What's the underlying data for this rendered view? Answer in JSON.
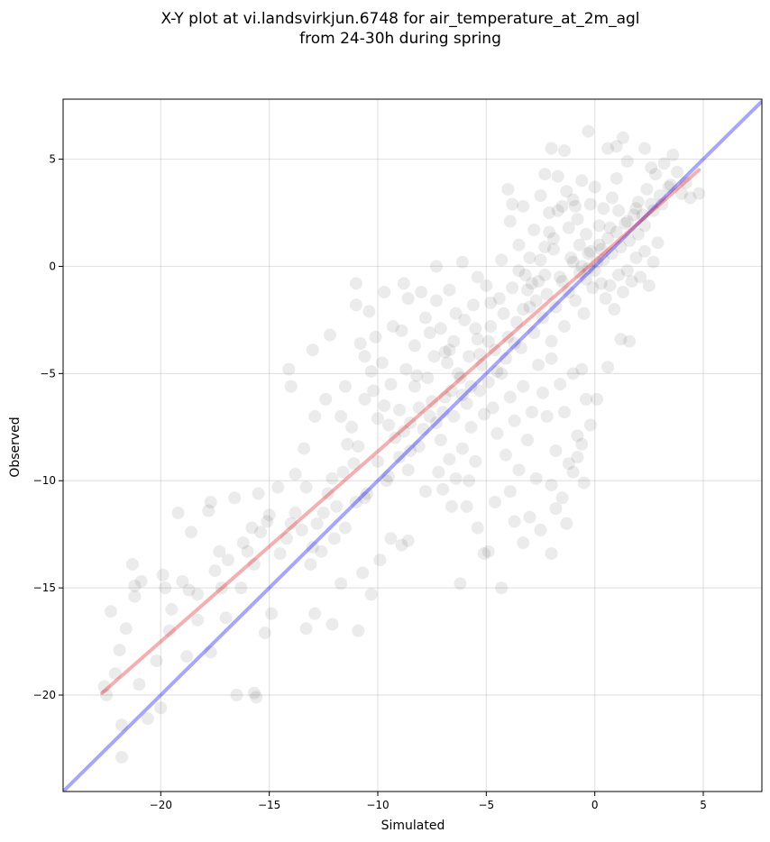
{
  "chart_data": {
    "type": "scatter",
    "title_lines": [
      "X-Y plot at vi.landsvirkjun.6748 for air_temperature_at_2m_agl",
      "from 24-30h during spring"
    ],
    "xlabel": "Simulated",
    "ylabel": "Observed",
    "xlim": [
      -24.5,
      7.7
    ],
    "ylim": [
      -24.5,
      7.8
    ],
    "x_ticks": [
      -20,
      -15,
      -10,
      -5,
      0,
      5
    ],
    "y_ticks": [
      -20,
      -15,
      -10,
      -5,
      0,
      5
    ],
    "x_tick_labels": [
      "−20",
      "−15",
      "−10",
      "−5",
      "0",
      "5"
    ],
    "y_tick_labels": [
      "−20",
      "−15",
      "−10",
      "−5",
      "0",
      "5"
    ],
    "grid": true,
    "point_color": "#000000",
    "point_alpha": 0.08,
    "identity_line": {
      "color": "#0000ff",
      "alpha": 0.35,
      "from": [
        -24.5,
        -24.5
      ],
      "to": [
        7.7,
        7.7
      ]
    },
    "regression_line": {
      "color": "#e41a1c",
      "alpha": 0.35,
      "from": [
        -22.7,
        -19.9
      ],
      "to": [
        4.8,
        4.5
      ]
    },
    "points": [
      [
        -22.3,
        -16.1
      ],
      [
        -21.9,
        -17.9
      ],
      [
        -22.6,
        -19.6
      ],
      [
        -21.8,
        -22.9
      ],
      [
        -21.8,
        -21.4
      ],
      [
        -21.2,
        -15.4
      ],
      [
        -20.9,
        -14.7
      ],
      [
        -21.0,
        -19.5
      ],
      [
        -20.6,
        -21.1
      ],
      [
        -21.3,
        -13.9
      ],
      [
        -21.2,
        -14.9
      ],
      [
        -20.0,
        -20.6
      ],
      [
        -19.9,
        -14.4
      ],
      [
        -19.8,
        -15.0
      ],
      [
        -19.5,
        -16.0
      ],
      [
        -19.2,
        -11.5
      ],
      [
        -19.0,
        -14.7
      ],
      [
        -18.7,
        -15.1
      ],
      [
        -18.6,
        -12.4
      ],
      [
        -18.3,
        -15.3
      ],
      [
        -17.8,
        -11.4
      ],
      [
        -17.7,
        -11.0
      ],
      [
        -17.5,
        -14.2
      ],
      [
        -17.3,
        -13.3
      ],
      [
        -17.2,
        -15.0
      ],
      [
        -16.9,
        -13.7
      ],
      [
        -16.6,
        -10.8
      ],
      [
        -16.2,
        -12.9
      ],
      [
        -16.0,
        -13.3
      ],
      [
        -15.8,
        -12.2
      ],
      [
        -15.5,
        -10.6
      ],
      [
        -15.4,
        -12.4
      ],
      [
        -15.1,
        -11.9
      ],
      [
        -16.5,
        -20.0
      ],
      [
        -15.7,
        -19.9
      ],
      [
        -15.6,
        -20.1
      ],
      [
        -15.2,
        -17.1
      ],
      [
        -14.9,
        -16.2
      ],
      [
        -14.5,
        -13.4
      ],
      [
        -14.2,
        -12.7
      ],
      [
        -14.0,
        -12.0
      ],
      [
        -13.8,
        -11.5
      ],
      [
        -13.5,
        -12.3
      ],
      [
        -13.3,
        -10.3
      ],
      [
        -13.0,
        -13.1
      ],
      [
        -12.8,
        -12.0
      ],
      [
        -12.5,
        -11.5
      ],
      [
        -12.3,
        -10.6
      ],
      [
        -12.1,
        -9.9
      ],
      [
        -11.9,
        -11.2
      ],
      [
        -11.6,
        -9.6
      ],
      [
        -11.4,
        -8.3
      ],
      [
        -11.1,
        -9.2
      ],
      [
        -10.9,
        -8.4
      ],
      [
        -10.6,
        -10.8
      ],
      [
        -14.1,
        -4.8
      ],
      [
        -14.0,
        -5.6
      ],
      [
        -13.0,
        -3.9
      ],
      [
        -12.2,
        -3.2
      ],
      [
        -11.5,
        -5.6
      ],
      [
        -11.0,
        -1.8
      ],
      [
        -10.8,
        -3.6
      ],
      [
        -10.6,
        -4.2
      ],
      [
        -10.3,
        -4.9
      ],
      [
        -10.1,
        -3.3
      ],
      [
        -9.8,
        -4.5
      ],
      [
        -13.3,
        -16.9
      ],
      [
        -12.9,
        -16.2
      ],
      [
        -12.1,
        -16.7
      ],
      [
        -11.7,
        -14.8
      ],
      [
        -10.9,
        -17.0
      ],
      [
        -10.7,
        -14.3
      ],
      [
        -10.3,
        -15.3
      ],
      [
        -9.9,
        -13.7
      ],
      [
        -9.4,
        -12.7
      ],
      [
        -8.9,
        -13.0
      ],
      [
        -8.6,
        -12.8
      ],
      [
        -10.0,
        -7.1
      ],
      [
        -9.7,
        -6.5
      ],
      [
        -9.5,
        -7.4
      ],
      [
        -9.2,
        -8.0
      ],
      [
        -9.0,
        -6.7
      ],
      [
        -8.8,
        -7.7
      ],
      [
        -8.5,
        -8.6
      ],
      [
        -8.3,
        -5.6
      ],
      [
        -8.1,
        -6.6
      ],
      [
        -7.9,
        -7.6
      ],
      [
        -7.7,
        -5.2
      ],
      [
        -7.5,
        -6.3
      ],
      [
        -9.3,
        -2.8
      ],
      [
        -8.9,
        -3.0
      ],
      [
        -8.6,
        -1.5
      ],
      [
        -8.3,
        -3.7
      ],
      [
        -8.0,
        -1.2
      ],
      [
        -7.8,
        -2.4
      ],
      [
        -7.6,
        -3.1
      ],
      [
        -7.3,
        -1.6
      ],
      [
        -7.1,
        -2.9
      ],
      [
        -6.9,
        -4.0
      ],
      [
        -6.7,
        -1.1
      ],
      [
        -6.4,
        -2.2
      ],
      [
        -7.3,
        -7.3
      ],
      [
        -7.1,
        -8.1
      ],
      [
        -6.9,
        -6.1
      ],
      [
        -6.7,
        -9.0
      ],
      [
        -6.5,
        -7.0
      ],
      [
        -6.3,
        -5.0
      ],
      [
        -6.1,
        -8.5
      ],
      [
        -5.9,
        -6.4
      ],
      [
        -5.7,
        -7.5
      ],
      [
        -5.5,
        -9.1
      ],
      [
        -5.3,
        -5.8
      ],
      [
        -5.1,
        -6.9
      ],
      [
        -7.0,
        -10.4
      ],
      [
        -6.6,
        -11.2
      ],
      [
        -6.2,
        -14.8
      ],
      [
        -5.8,
        -10.0
      ],
      [
        -5.4,
        -12.2
      ],
      [
        -5.1,
        -13.4
      ],
      [
        -4.9,
        -13.3
      ],
      [
        -4.6,
        -11.0
      ],
      [
        -4.3,
        -15.0
      ],
      [
        -3.7,
        -11.9
      ],
      [
        -3.3,
        -12.9
      ],
      [
        -6.8,
        -4.5
      ],
      [
        -6.5,
        -3.5
      ],
      [
        -6.2,
        -5.2
      ],
      [
        -6.0,
        -2.5
      ],
      [
        -5.8,
        -4.2
      ],
      [
        -5.6,
        -1.8
      ],
      [
        -5.4,
        -3.4
      ],
      [
        -5.2,
        -4.6
      ],
      [
        -5.0,
        -0.9
      ],
      [
        -4.8,
        -2.8
      ],
      [
        -4.6,
        -3.9
      ],
      [
        -4.4,
        -1.5
      ],
      [
        -4.9,
        -5.4
      ],
      [
        -4.7,
        -6.6
      ],
      [
        -4.5,
        -7.8
      ],
      [
        -4.3,
        -5.0
      ],
      [
        -4.1,
        -8.8
      ],
      [
        -3.9,
        -6.1
      ],
      [
        -3.7,
        -7.2
      ],
      [
        -3.5,
        -9.5
      ],
      [
        -3.3,
        -5.6
      ],
      [
        -3.1,
        -8.1
      ],
      [
        -2.9,
        -6.8
      ],
      [
        -2.7,
        -9.9
      ],
      [
        -4.2,
        -2.2
      ],
      [
        -4.0,
        -3.3
      ],
      [
        -3.8,
        -1.0
      ],
      [
        -3.6,
        -2.6
      ],
      [
        -3.4,
        -3.8
      ],
      [
        -3.2,
        -0.4
      ],
      [
        -3.0,
        -1.9
      ],
      [
        -2.8,
        -3.1
      ],
      [
        -2.6,
        -0.7
      ],
      [
        -2.4,
        -2.4
      ],
      [
        -2.2,
        -1.3
      ],
      [
        -2.0,
        -3.5
      ],
      [
        -4.0,
        3.6
      ],
      [
        -3.9,
        2.1
      ],
      [
        -3.5,
        1.0
      ],
      [
        -3.3,
        2.8
      ],
      [
        -3.0,
        0.4
      ],
      [
        -2.8,
        1.7
      ],
      [
        -2.5,
        3.3
      ],
      [
        -2.3,
        0.9
      ],
      [
        -2.1,
        2.5
      ],
      [
        -1.9,
        1.3
      ],
      [
        -1.7,
        4.2
      ],
      [
        -1.5,
        2.8
      ],
      [
        -2.6,
        -4.6
      ],
      [
        -2.4,
        -5.9
      ],
      [
        -2.2,
        -7.0
      ],
      [
        -2.0,
        -4.3
      ],
      [
        -1.8,
        -8.6
      ],
      [
        -1.6,
        -5.5
      ],
      [
        -1.4,
        -6.8
      ],
      [
        -1.2,
        -9.2
      ],
      [
        -1.0,
        -5.0
      ],
      [
        -0.8,
        -7.9
      ],
      [
        -0.6,
        -4.8
      ],
      [
        -0.4,
        -6.2
      ],
      [
        -2.0,
        -10.2
      ],
      [
        -1.8,
        -11.3
      ],
      [
        -1.5,
        -10.8
      ],
      [
        -1.3,
        -12.0
      ],
      [
        -1.0,
        -9.6
      ],
      [
        -0.8,
        -8.9
      ],
      [
        -0.5,
        -10.1
      ],
      [
        -0.2,
        -7.4
      ],
      [
        0.1,
        -6.2
      ],
      [
        0.6,
        -4.7
      ],
      [
        1.2,
        -3.4
      ],
      [
        1.6,
        -3.5
      ],
      [
        -1.8,
        -1.9
      ],
      [
        -1.6,
        -0.5
      ],
      [
        -1.4,
        -2.8
      ],
      [
        -1.2,
        -1.2
      ],
      [
        -1.0,
        0.2
      ],
      [
        -0.9,
        -1.6
      ],
      [
        -0.7,
        -0.3
      ],
      [
        -0.5,
        -2.2
      ],
      [
        -0.3,
        0.6
      ],
      [
        -0.1,
        -1.0
      ],
      [
        0.1,
        0.2
      ],
      [
        0.3,
        -0.8
      ],
      [
        -1.2,
        1.8
      ],
      [
        -1.0,
        3.1
      ],
      [
        -0.8,
        2.2
      ],
      [
        -0.6,
        4.0
      ],
      [
        -0.4,
        1.5
      ],
      [
        -0.2,
        2.9
      ],
      [
        0.0,
        3.7
      ],
      [
        0.2,
        1.9
      ],
      [
        0.4,
        2.7
      ],
      [
        0.6,
        5.5
      ],
      [
        0.8,
        3.2
      ],
      [
        1.0,
        4.1
      ],
      [
        1.3,
        6.0
      ],
      [
        -0.3,
        6.3
      ],
      [
        -0.6,
        0.0
      ],
      [
        -0.4,
        -0.6
      ],
      [
        -0.2,
        0.7
      ],
      [
        0.0,
        -0.2
      ],
      [
        0.2,
        1.0
      ],
      [
        0.4,
        0.3
      ],
      [
        0.6,
        1.3
      ],
      [
        0.8,
        0.6
      ],
      [
        1.0,
        1.6
      ],
      [
        1.2,
        0.9
      ],
      [
        1.4,
        2.0
      ],
      [
        1.6,
        1.2
      ],
      [
        1.8,
        2.4
      ],
      [
        2.0,
        1.5
      ],
      [
        0.5,
        -1.5
      ],
      [
        0.7,
        -0.9
      ],
      [
        0.9,
        -2.0
      ],
      [
        1.1,
        -0.4
      ],
      [
        1.3,
        -1.2
      ],
      [
        1.5,
        -0.2
      ],
      [
        1.7,
        -0.7
      ],
      [
        1.9,
        0.4
      ],
      [
        2.1,
        -0.5
      ],
      [
        2.3,
        0.7
      ],
      [
        2.5,
        -0.9
      ],
      [
        2.7,
        0.2
      ],
      [
        2.9,
        1.1
      ],
      [
        2.0,
        3.0
      ],
      [
        2.2,
        2.4
      ],
      [
        2.4,
        3.6
      ],
      [
        2.6,
        2.9
      ],
      [
        2.8,
        4.3
      ],
      [
        3.0,
        3.3
      ],
      [
        3.2,
        4.8
      ],
      [
        3.4,
        3.7
      ],
      [
        3.6,
        5.2
      ],
      [
        3.8,
        4.4
      ],
      [
        4.0,
        3.4
      ],
      [
        4.2,
        3.9
      ],
      [
        4.4,
        3.2
      ],
      [
        4.8,
        3.4
      ],
      [
        2.3,
        5.5
      ],
      [
        2.6,
        4.6
      ],
      [
        1.5,
        4.9
      ],
      [
        1.0,
        5.6
      ],
      [
        -2.0,
        5.5
      ],
      [
        -1.4,
        5.4
      ],
      [
        -2.3,
        4.3
      ],
      [
        -3.8,
        2.9
      ],
      [
        -4.3,
        0.3
      ],
      [
        -5.4,
        -0.5
      ],
      [
        -6.1,
        0.2
      ],
      [
        -7.3,
        0.0
      ],
      [
        -8.8,
        -0.8
      ],
      [
        -9.7,
        -1.2
      ],
      [
        -10.4,
        -2.1
      ],
      [
        -11.0,
        -0.8
      ],
      [
        -12.4,
        -6.2
      ],
      [
        -12.9,
        -7.0
      ],
      [
        -13.4,
        -8.5
      ],
      [
        -13.8,
        -9.7
      ],
      [
        -14.6,
        -10.3
      ],
      [
        -15.0,
        -11.6
      ],
      [
        -15.7,
        -13.9
      ],
      [
        -16.3,
        -15.0
      ],
      [
        -17.0,
        -16.4
      ],
      [
        -17.7,
        -18.0
      ],
      [
        -18.3,
        -16.5
      ],
      [
        -18.8,
        -18.2
      ],
      [
        -19.6,
        -17.0
      ],
      [
        -20.2,
        -18.4
      ],
      [
        -21.6,
        -16.9
      ],
      [
        -22.1,
        -19.0
      ],
      [
        -22.5,
        -20.0
      ],
      [
        -9.6,
        -10.0
      ],
      [
        -8.6,
        -9.5
      ],
      [
        -7.8,
        -10.5
      ],
      [
        -7.2,
        -9.6
      ],
      [
        -6.4,
        -9.9
      ],
      [
        -5.9,
        -11.2
      ],
      [
        -3.9,
        -10.5
      ],
      [
        -3.0,
        -11.7
      ],
      [
        -2.5,
        -12.3
      ],
      [
        -2.0,
        -13.4
      ],
      [
        -0.6,
        -8.3
      ],
      [
        -11.7,
        -7.0
      ],
      [
        -11.2,
        -7.5
      ],
      [
        -10.6,
        -6.2
      ],
      [
        -10.2,
        -5.8
      ],
      [
        -9.4,
        -5.5
      ],
      [
        -8.7,
        -4.8
      ],
      [
        -8.2,
        -5.1
      ],
      [
        -7.4,
        -4.2
      ],
      [
        -6.7,
        -3.9
      ],
      [
        -5.5,
        -2.9
      ],
      [
        -4.8,
        -1.7
      ],
      [
        -3.5,
        -0.2
      ],
      [
        -3.1,
        -1.1
      ],
      [
        -2.7,
        -1.6
      ],
      [
        -2.3,
        -0.4
      ],
      [
        -1.9,
        0.8
      ],
      [
        -1.5,
        -0.7
      ],
      [
        -1.1,
        0.4
      ],
      [
        -0.7,
        1.0
      ],
      [
        -0.3,
        -0.1
      ],
      [
        0.3,
        0.8
      ],
      [
        0.7,
        1.8
      ],
      [
        1.1,
        2.6
      ],
      [
        1.5,
        2.1
      ],
      [
        1.9,
        2.7
      ],
      [
        2.3,
        1.9
      ],
      [
        2.7,
        2.6
      ],
      [
        3.1,
        2.9
      ],
      [
        3.5,
        3.8
      ],
      [
        -0.9,
        2.8
      ],
      [
        -1.3,
        3.5
      ],
      [
        -1.7,
        2.6
      ],
      [
        -2.1,
        1.6
      ],
      [
        -2.5,
        0.3
      ],
      [
        -2.9,
        -0.8
      ],
      [
        -3.3,
        -2.0
      ],
      [
        -3.7,
        -3.6
      ],
      [
        -4.1,
        -4.3
      ],
      [
        -4.5,
        -4.9
      ],
      [
        -4.9,
        -3.5
      ],
      [
        -5.3,
        -4.1
      ],
      [
        -5.7,
        -5.6
      ],
      [
        -6.1,
        -6.0
      ],
      [
        -6.6,
        -5.8
      ],
      [
        -7.0,
        -6.8
      ],
      [
        -7.6,
        -7.0
      ],
      [
        -8.1,
        -8.4
      ],
      [
        -8.5,
        -7.3
      ],
      [
        -9.0,
        -8.9
      ],
      [
        -9.5,
        -9.8
      ],
      [
        -10.0,
        -9.1
      ],
      [
        -10.5,
        -10.6
      ],
      [
        -11.0,
        -11.0
      ],
      [
        -11.5,
        -12.2
      ],
      [
        -12.0,
        -12.7
      ],
      [
        -12.6,
        -13.3
      ],
      [
        -13.1,
        -13.9
      ]
    ]
  }
}
